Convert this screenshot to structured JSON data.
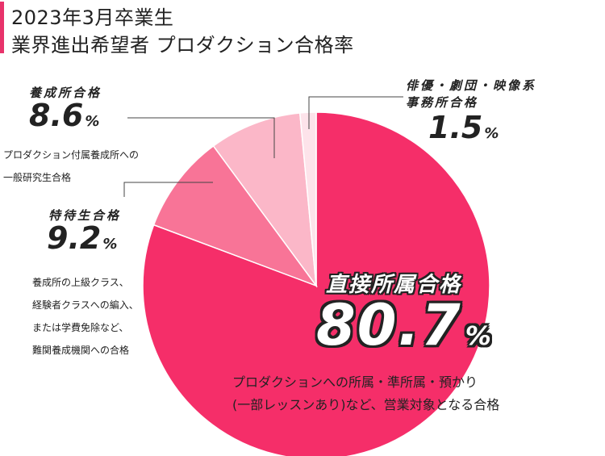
{
  "title": {
    "line1": "2023年3月卒業生",
    "line2": "業界進出希望者 プロダクション合格率"
  },
  "chart_data": {
    "type": "pie",
    "title": "2023年3月卒業生 業界進出希望者 プロダクション合格率",
    "unit": "%",
    "slices": [
      {
        "name": "直接所属合格",
        "value": 80.7,
        "value_label": "80.7",
        "color": "#f52e69",
        "desc": [
          "プロダクションへの所属・準所属・預かり",
          "(一部レッスンあり)など、営業対象となる合格"
        ]
      },
      {
        "name": "特待生合格",
        "value": 9.2,
        "value_label": "9.2",
        "color": "#f87497",
        "desc": [
          "養成所の上級クラス、",
          "経験者クラスへの編入、",
          "または学費免除など、",
          "難関養成機関への合格"
        ]
      },
      {
        "name": "養成所合格",
        "value": 8.6,
        "value_label": "8.6",
        "color": "#fbb7c8",
        "desc": [
          "プロダクション付属養成所への",
          "一般研究生合格"
        ]
      },
      {
        "name_lines": [
          "俳優・劇団・映像系",
          "事務所合格"
        ],
        "value": 1.5,
        "value_label": "1.5",
        "color": "#fde3ea",
        "desc": []
      }
    ]
  }
}
